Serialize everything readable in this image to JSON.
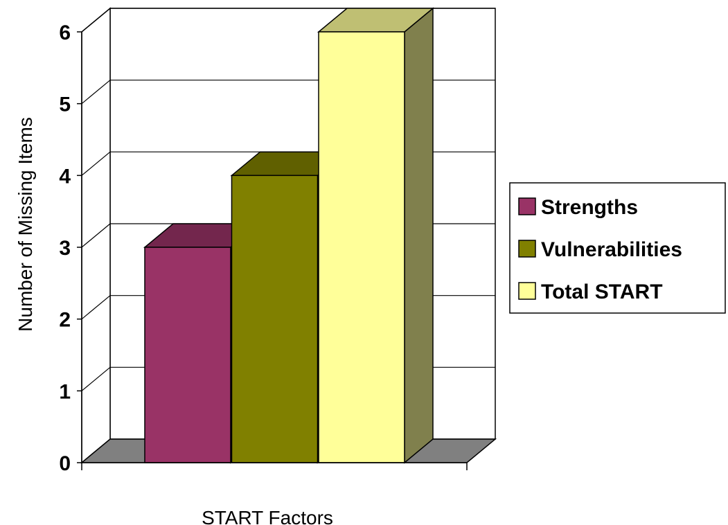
{
  "chart_data": {
    "type": "bar",
    "style": "3d-column",
    "categories": [
      ""
    ],
    "series": [
      {
        "name": "Strengths",
        "values": [
          3
        ],
        "color": "#993366"
      },
      {
        "name": "Vulnerabilities",
        "values": [
          4
        ],
        "color": "#808000"
      },
      {
        "name": "Total START",
        "values": [
          6
        ],
        "color": "#FFFF99"
      }
    ],
    "title": "",
    "xlabel": "START Factors",
    "ylabel": "Number of Missing Items",
    "ylim": [
      0,
      6
    ],
    "yticks": [
      "0",
      "1",
      "2",
      "3",
      "4",
      "5",
      "6"
    ],
    "grid": true,
    "legend_position": "right",
    "floor_color": "#808080"
  }
}
